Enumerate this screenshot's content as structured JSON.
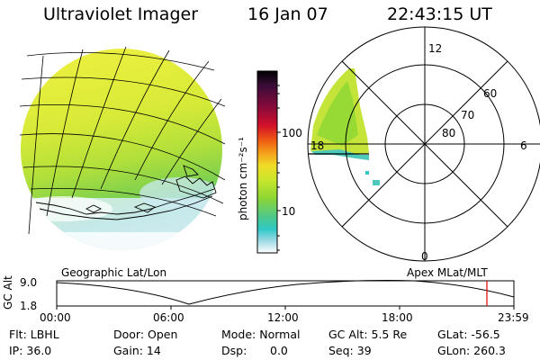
{
  "header": {
    "title": "Ultraviolet Imager",
    "date": "16 Jan 07",
    "time": "22:43:15 UT"
  },
  "colorbar": {
    "label": "photon cm⁻²s⁻¹",
    "ticks": [
      "100",
      "10"
    ],
    "colors": [
      "#000000",
      "#3a0c38",
      "#8a0a3a",
      "#d2102a",
      "#f05a12",
      "#f4a01a",
      "#f0dc28",
      "#c8e62a",
      "#8cd634",
      "#4ec88a",
      "#30c8c8",
      "#9ad8e4",
      "#ffffff"
    ]
  },
  "polar_plot": {
    "mlt_labels": {
      "top": "12",
      "right": "6",
      "left": "18",
      "bottom": "0"
    },
    "lat_labels": [
      "60",
      "70",
      "80"
    ]
  },
  "panel_labels": {
    "left": "Geographic Lat/Lon",
    "right": "Apex MLat/MLT"
  },
  "altitude_plot": {
    "ylabel": "GC Alt",
    "yticks": [
      "9.0",
      "1.8"
    ],
    "xticks": [
      "00:00",
      "06:00",
      "12:00",
      "18:00",
      "23:59"
    ],
    "marker_color": "#e00000"
  },
  "info": {
    "filter": "Flt: LBHL",
    "door": "Door: Open",
    "mode": "Mode: Normal",
    "gc_alt": "GC Alt: 5.5 Re",
    "glat": "GLat: -56.5",
    "ip": "IP: 36.0",
    "gain": "Gain: 14",
    "dsp_label": "Dsp:",
    "dsp_value": "0.0",
    "seq": "Seq: 39",
    "glon": "GLon: 260.3"
  }
}
